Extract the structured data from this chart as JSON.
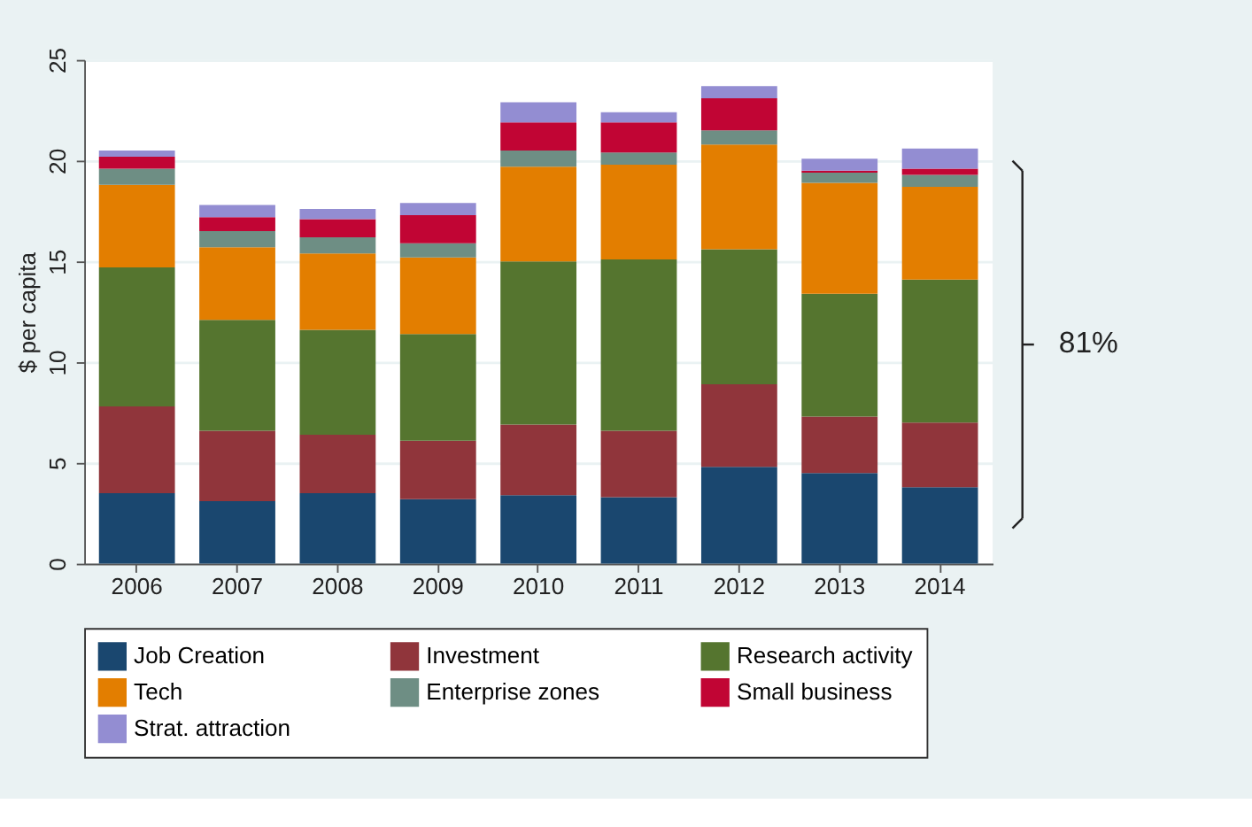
{
  "chart_data": {
    "type": "bar",
    "stacked": true,
    "ylabel": "$ per capita",
    "categories": [
      "2006",
      "2007",
      "2008",
      "2009",
      "2010",
      "2011",
      "2012",
      "2013",
      "2014"
    ],
    "series": [
      {
        "name": "Job Creation",
        "color": "#1a476f",
        "values": [
          3.5,
          3.1,
          3.5,
          3.2,
          3.4,
          3.3,
          4.8,
          4.5,
          3.8
        ]
      },
      {
        "name": "Investment",
        "color": "#90353b",
        "values": [
          4.3,
          3.5,
          2.9,
          2.9,
          3.5,
          3.3,
          4.1,
          2.8,
          3.2
        ]
      },
      {
        "name": "Research activity",
        "color": "#55752f",
        "values": [
          6.9,
          5.5,
          5.2,
          5.3,
          8.1,
          8.5,
          6.7,
          6.1,
          7.1
        ]
      },
      {
        "name": "Tech",
        "color": "#e37e00",
        "values": [
          4.1,
          3.6,
          3.8,
          3.8,
          4.7,
          4.7,
          5.2,
          5.5,
          4.6
        ]
      },
      {
        "name": "Enterprise zones",
        "color": "#6e8e84",
        "values": [
          0.8,
          0.8,
          0.8,
          0.7,
          0.8,
          0.6,
          0.7,
          0.5,
          0.6
        ]
      },
      {
        "name": "Small business",
        "color": "#c10534",
        "values": [
          0.6,
          0.7,
          0.9,
          1.4,
          1.4,
          1.5,
          1.6,
          0.1,
          0.3
        ]
      },
      {
        "name": "Strat. attraction",
        "color": "#938dd2",
        "values": [
          0.3,
          0.6,
          0.5,
          0.6,
          1.0,
          0.5,
          0.6,
          0.6,
          1.0
        ]
      }
    ],
    "ylim": [
      0,
      25
    ],
    "yticks": [
      0,
      5,
      10,
      15,
      20,
      25
    ],
    "grid": "y",
    "legend": "bottom",
    "annotations": [
      "81%"
    ]
  }
}
